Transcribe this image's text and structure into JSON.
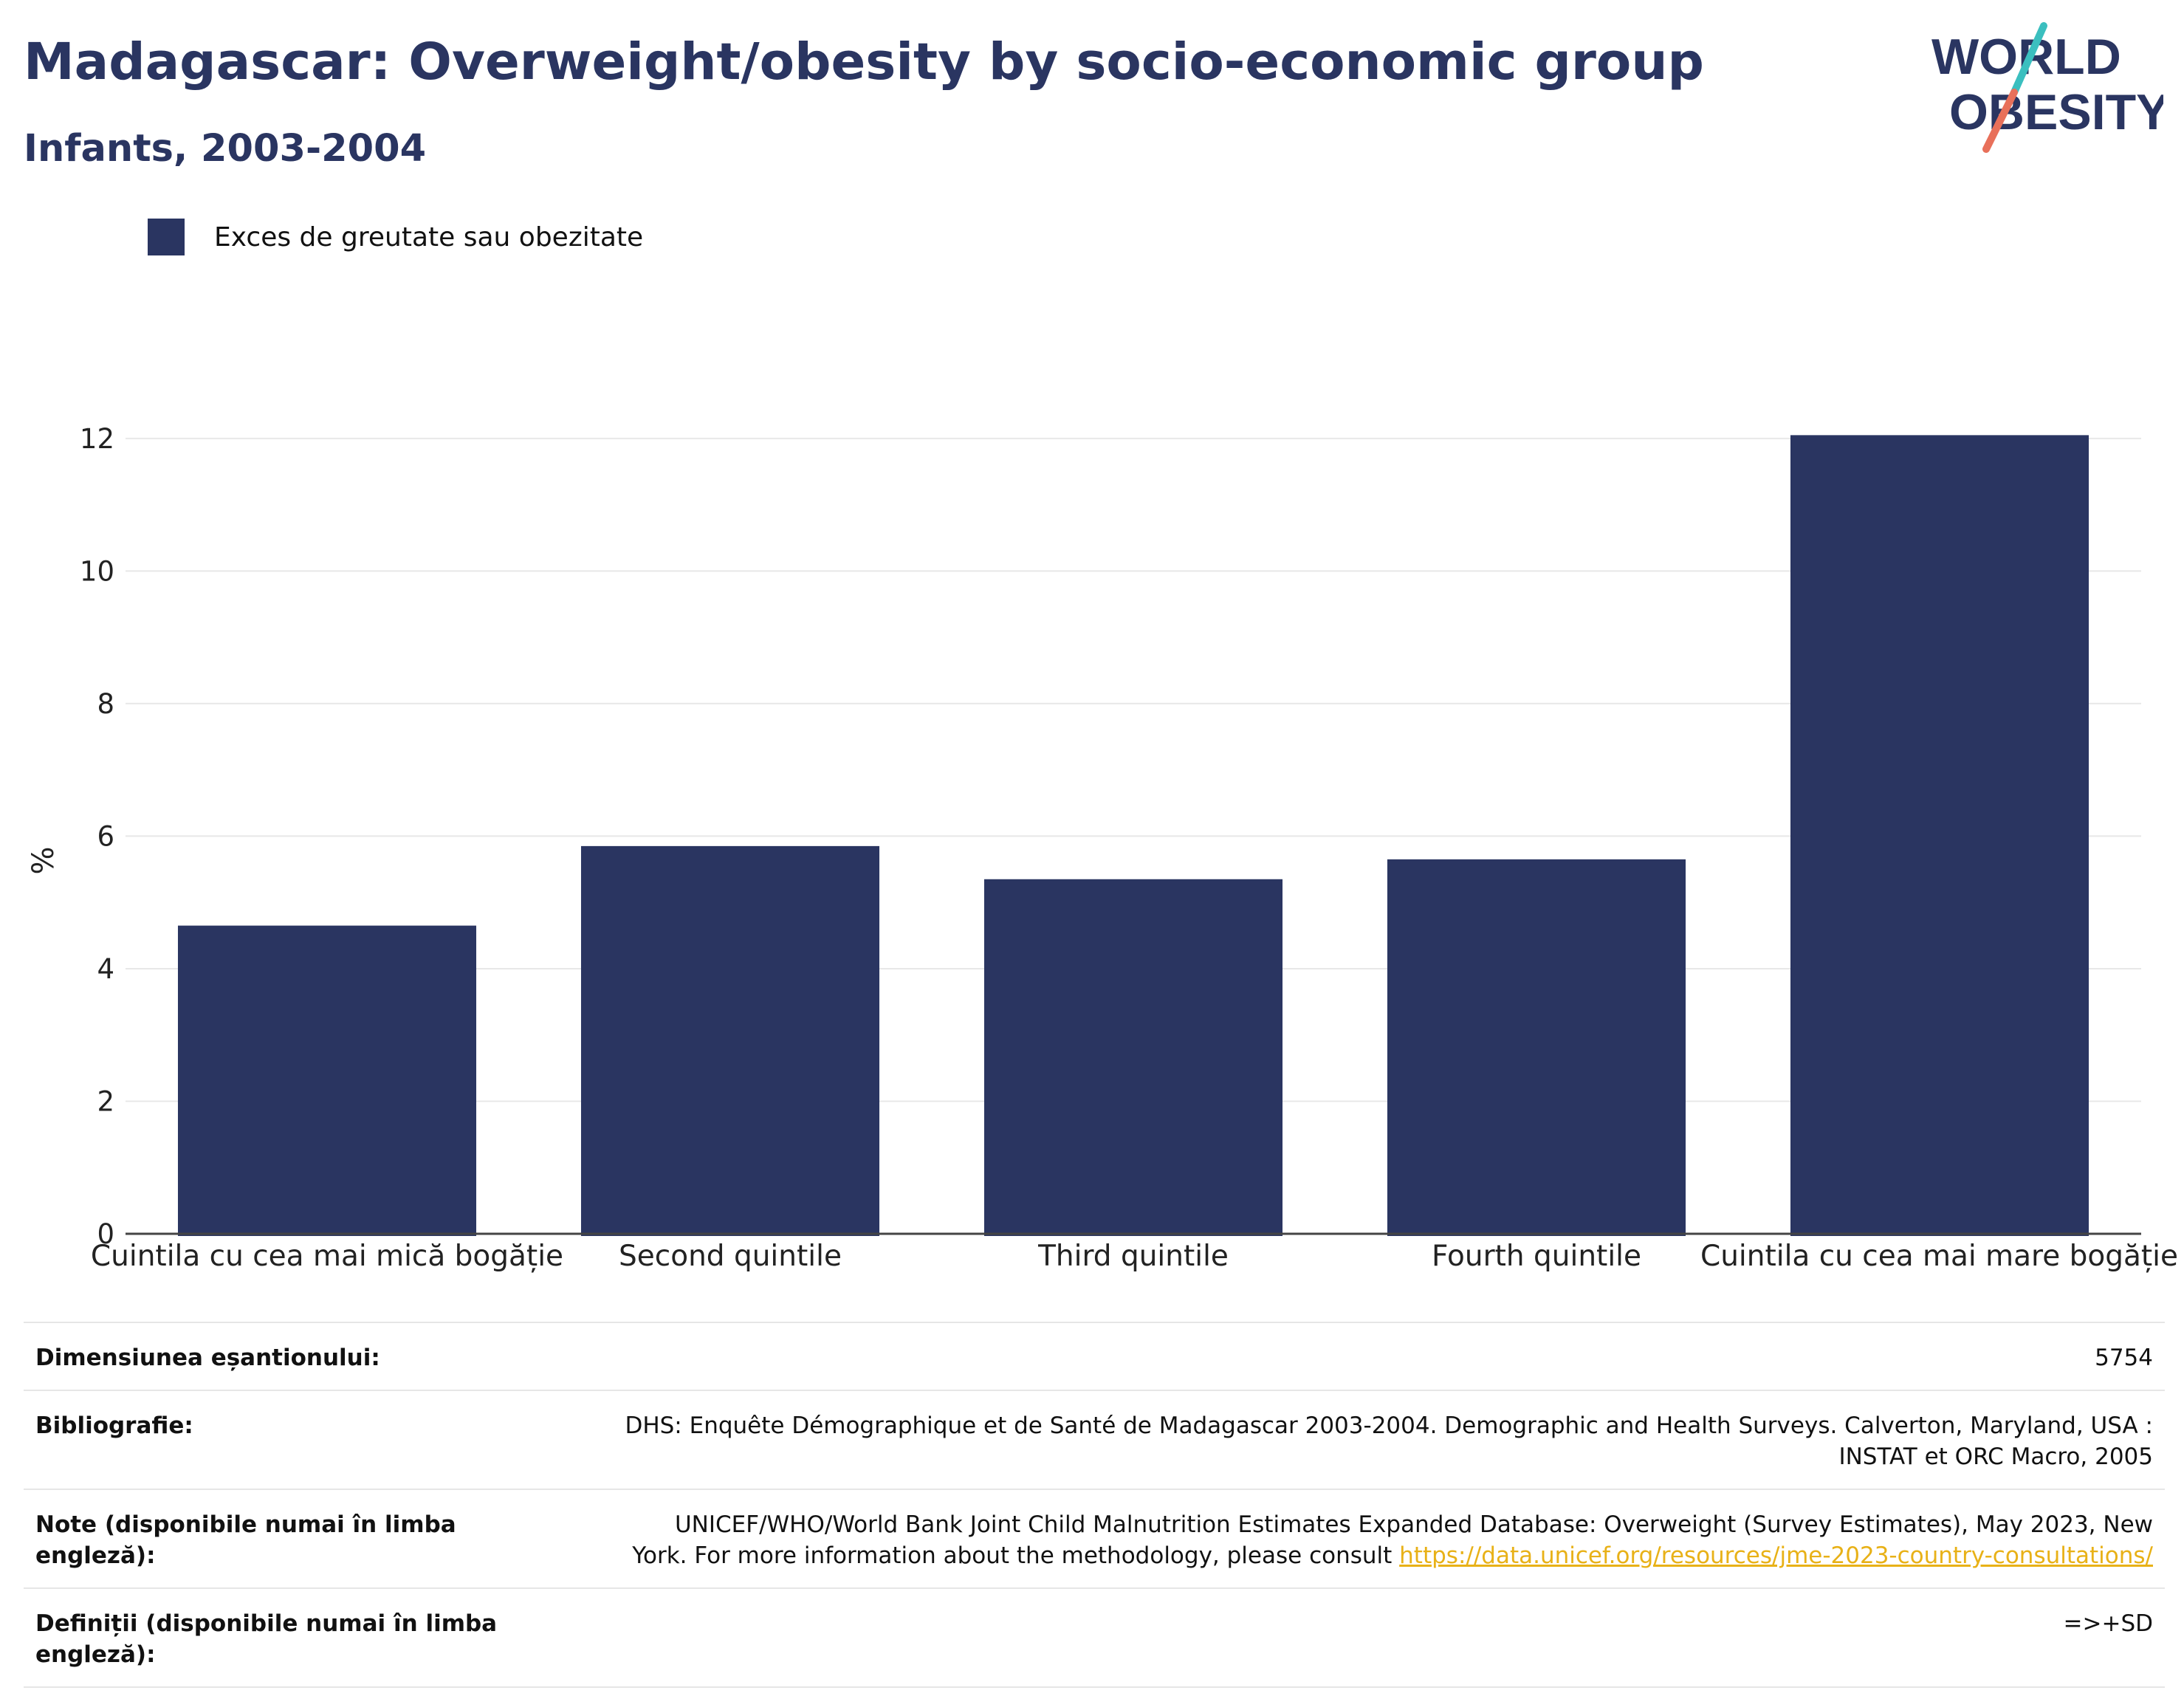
{
  "header": {
    "title": "Madagascar: Overweight/obesity by socio-economic group",
    "subtitle": "Infants, 2003-2004"
  },
  "logo": {
    "line1": "WORLD",
    "line2": "OBESITY",
    "colors": {
      "text": "#2a3561",
      "slash_teal": "#3bbfbf",
      "slash_red": "#e8705a"
    }
  },
  "chart_data": {
    "type": "bar",
    "categories": [
      "Cuintila cu cea mai mică bogăție",
      "Second quintile",
      "Third quintile",
      "Fourth quintile",
      "Cuintila cu cea mai mare bogăție"
    ],
    "series": [
      {
        "name": "Exces de greutate sau obezitate",
        "values": [
          4.65,
          5.85,
          5.35,
          5.65,
          12.05
        ],
        "color": "#2a3561"
      }
    ],
    "ylabel": "%",
    "ylim": [
      0,
      12.6
    ],
    "yticks": [
      0,
      2,
      4,
      6,
      8,
      10,
      12
    ],
    "grid": true,
    "legend_position": "top-left"
  },
  "info": {
    "sample_label": "Dimensiunea eșantionului:",
    "sample_value": "5754",
    "biblio_label": "Bibliografie:",
    "biblio_line1": "DHS: Enquête Démographique et de Santé de Madagascar 2003-2004. Demographic and Health Surveys. Calverton, Maryland, USA :",
    "biblio_line2": "INSTAT et ORC Macro, 2005",
    "notes_label": "Note (disponibile numai în limba engleză):",
    "notes_line1": "UNICEF/WHO/World Bank Joint Child Malnutrition Estimates Expanded Database: Overweight (Survey Estimates), May 2023, New",
    "notes_line2": "York. For more information about the methodology, please consult ",
    "notes_link": "https://data.unicef.org/resources/jme-2023-country-consultations/",
    "definitions_label": "Definiții (disponibile numai în limba engleză):",
    "definitions_value": "=>+SD"
  }
}
